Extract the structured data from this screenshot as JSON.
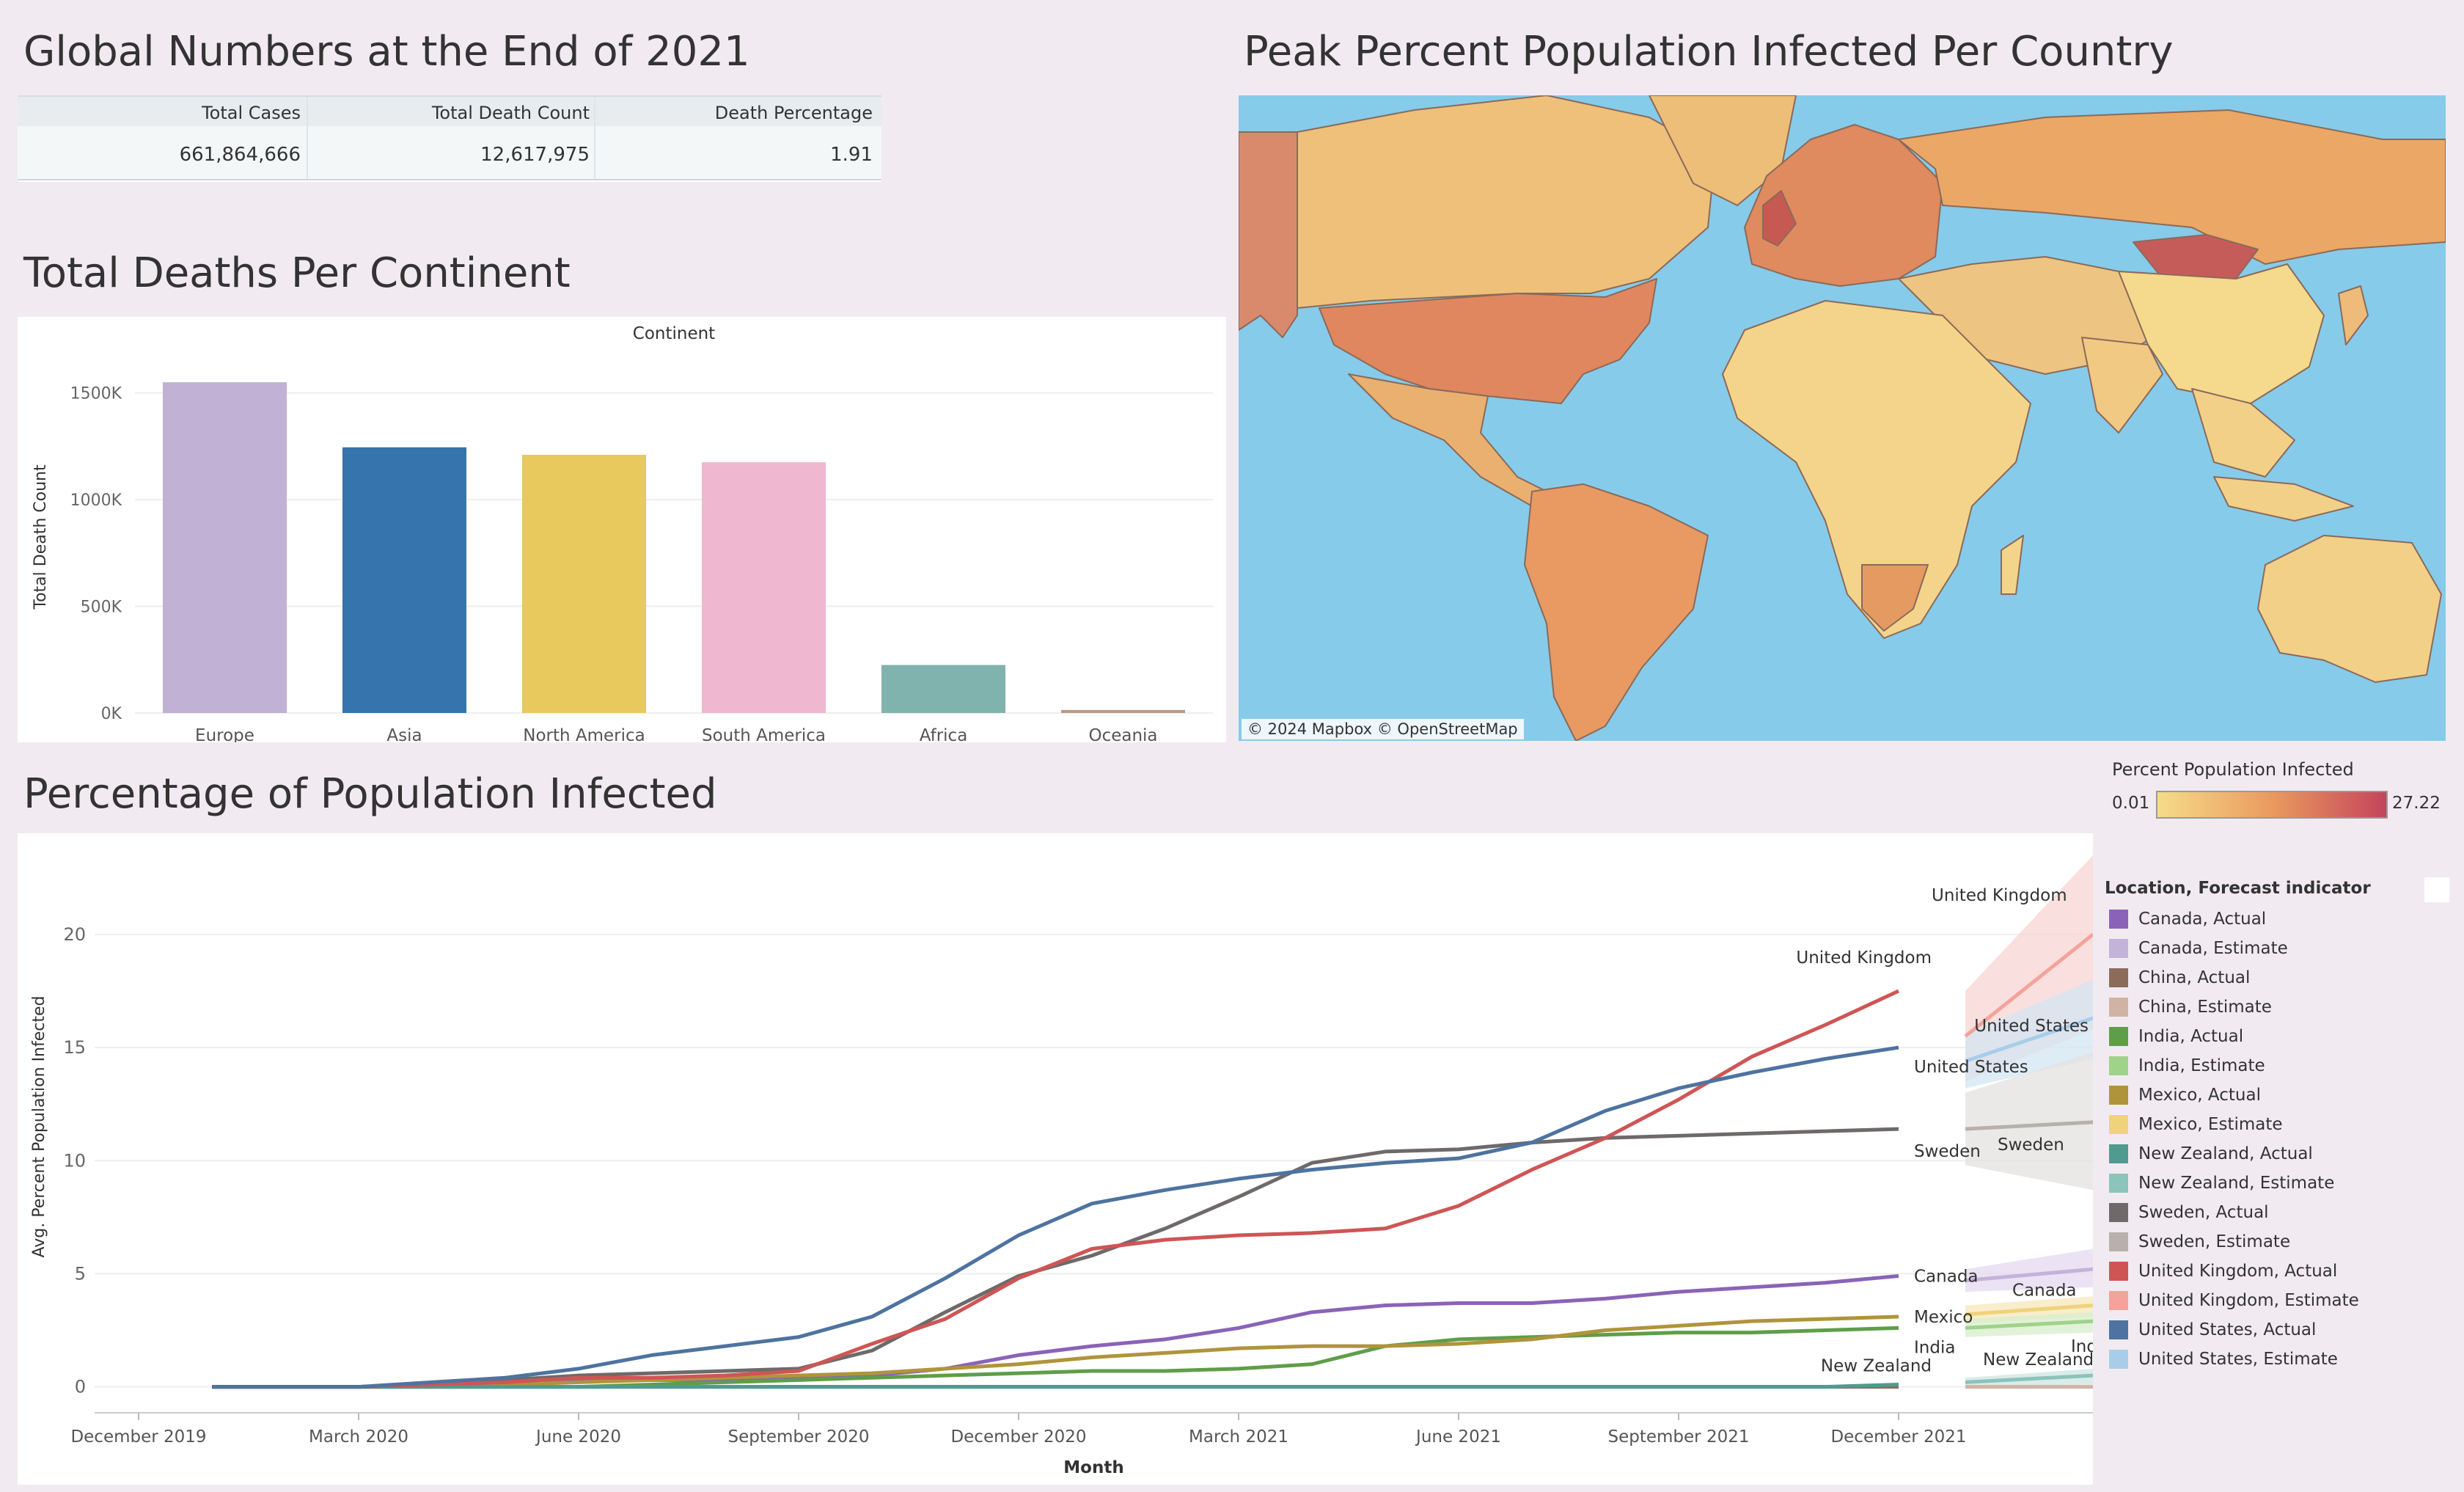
{
  "global": {
    "title": "Global Numbers at the End of 2021",
    "headers": [
      "Total Cases",
      "Total Death Count",
      "Death Percentage"
    ],
    "values": [
      "661,864,666",
      "12,617,975",
      "1.91"
    ]
  },
  "map": {
    "title": "Peak Percent Population Infected Per Country",
    "credit": "© 2024 Mapbox  © OpenStreetMap",
    "legend_title": "Percent Population Infected",
    "min_label": "0.01",
    "max_label": "27.22",
    "colors": {
      "low": "#f5dc8a",
      "mid": "#ea9a5f",
      "high": "#c4445c",
      "ocean": "#86cbea"
    }
  },
  "deaths": {
    "title": "Total Deaths Per Continent"
  },
  "infected": {
    "title": "Percentage of Population Infected",
    "legend_title": "Location, Forecast indicator",
    "legend": [
      {
        "label": "Canada, Actual",
        "color": "#8a63b8"
      },
      {
        "label": "Canada, Estimate",
        "color": "#c3b3d9"
      },
      {
        "label": "China, Actual",
        "color": "#8b6c5b"
      },
      {
        "label": "China, Estimate",
        "color": "#d1b3a3"
      },
      {
        "label": "India, Actual",
        "color": "#5e9e48"
      },
      {
        "label": "India, Estimate",
        "color": "#9fd38a"
      },
      {
        "label": "Mexico, Actual",
        "color": "#b0943b"
      },
      {
        "label": "Mexico, Estimate",
        "color": "#f0d27a"
      },
      {
        "label": "New Zealand, Actual",
        "color": "#4f9b90"
      },
      {
        "label": "New Zealand, Estimate",
        "color": "#8cc3bb"
      },
      {
        "label": "Sweden, Actual",
        "color": "#6e6a6a"
      },
      {
        "label": "Sweden, Estimate",
        "color": "#b7b1ab"
      },
      {
        "label": "United Kingdom, Actual",
        "color": "#cf5555"
      },
      {
        "label": "United Kingdom, Estimate",
        "color": "#f4a29b"
      },
      {
        "label": "United States, Actual",
        "color": "#4e73a0"
      },
      {
        "label": "United States, Estimate",
        "color": "#a8cde9"
      }
    ]
  },
  "chart_data": [
    {
      "type": "bar",
      "title": "Continent",
      "ylabel": "Total Death Count",
      "categories": [
        "Europe",
        "Asia",
        "North America",
        "South America",
        "Africa",
        "Oceania"
      ],
      "values": [
        1550000,
        1245000,
        1210000,
        1175000,
        225000,
        14000
      ],
      "colors": [
        "#c0b1d5",
        "#3574ad",
        "#e7c95d",
        "#efb7d0",
        "#81b3ae",
        "#b59b86"
      ],
      "yticks": [
        0,
        500000,
        1000000,
        1500000
      ],
      "ytick_labels": [
        "0K",
        "500K",
        "1000K",
        "1500K"
      ],
      "ylim": [
        0,
        1650000
      ]
    },
    {
      "type": "line",
      "xlabel": "Month",
      "ylabel": "Avg. Percent Population Infected",
      "x": [
        "2020-01",
        "2020-02",
        "2020-03",
        "2020-04",
        "2020-05",
        "2020-06",
        "2020-07",
        "2020-08",
        "2020-09",
        "2020-10",
        "2020-11",
        "2020-12",
        "2021-01",
        "2021-02",
        "2021-03",
        "2021-04",
        "2021-05",
        "2021-06",
        "2021-07",
        "2021-08",
        "2021-09",
        "2021-10",
        "2021-11",
        "2021-12"
      ],
      "xtick_labels": [
        "December 2019",
        "March 2020",
        "June 2020",
        "September 2020",
        "December 2020",
        "March 2021",
        "June 2021",
        "September 2021",
        "December 2021"
      ],
      "yticks": [
        0,
        5,
        10,
        15,
        20
      ],
      "ylim": [
        -0.5,
        23.5
      ],
      "series": [
        {
          "name": "Canada",
          "forecast": "Actual",
          "color": "#8a63b8",
          "values": [
            0,
            0,
            0,
            0.1,
            0.2,
            0.3,
            0.3,
            0.3,
            0.4,
            0.5,
            0.8,
            1.4,
            1.8,
            2.1,
            2.6,
            3.3,
            3.6,
            3.7,
            3.7,
            3.9,
            4.2,
            4.4,
            4.6,
            4.9
          ]
        },
        {
          "name": "China",
          "forecast": "Actual",
          "color": "#8b6c5b",
          "values": [
            0,
            0,
            0,
            0,
            0,
            0,
            0,
            0,
            0,
            0,
            0,
            0,
            0,
            0,
            0,
            0,
            0,
            0,
            0,
            0,
            0,
            0,
            0,
            0
          ]
        },
        {
          "name": "India",
          "forecast": "Actual",
          "color": "#5e9e48",
          "values": [
            0,
            0,
            0,
            0,
            0,
            0,
            0.1,
            0.2,
            0.3,
            0.4,
            0.5,
            0.6,
            0.7,
            0.7,
            0.8,
            1.0,
            1.8,
            2.1,
            2.2,
            2.3,
            2.4,
            2.4,
            2.5,
            2.6
          ]
        },
        {
          "name": "Mexico",
          "forecast": "Actual",
          "color": "#b0943b",
          "values": [
            0,
            0,
            0,
            0,
            0.1,
            0.2,
            0.3,
            0.4,
            0.5,
            0.6,
            0.8,
            1.0,
            1.3,
            1.5,
            1.7,
            1.8,
            1.8,
            1.9,
            2.1,
            2.5,
            2.7,
            2.9,
            3.0,
            3.1
          ]
        },
        {
          "name": "New Zealand",
          "forecast": "Actual",
          "color": "#4f9b90",
          "values": [
            0,
            0,
            0,
            0,
            0,
            0,
            0,
            0,
            0,
            0,
            0,
            0,
            0,
            0,
            0,
            0,
            0,
            0,
            0,
            0,
            0,
            0,
            0,
            0.1
          ]
        },
        {
          "name": "Sweden",
          "forecast": "Actual",
          "color": "#6e6a6a",
          "values": [
            0,
            0,
            0,
            0.1,
            0.3,
            0.5,
            0.6,
            0.7,
            0.8,
            1.6,
            3.3,
            4.9,
            5.8,
            7.0,
            8.4,
            9.9,
            10.4,
            10.5,
            10.8,
            11.0,
            11.1,
            11.2,
            11.3,
            11.4
          ]
        },
        {
          "name": "United Kingdom",
          "forecast": "Actual",
          "color": "#cf5555",
          "values": [
            0,
            0,
            0,
            0.1,
            0.2,
            0.4,
            0.4,
            0.5,
            0.7,
            1.9,
            3.0,
            4.8,
            6.1,
            6.5,
            6.7,
            6.8,
            7.0,
            8.0,
            9.6,
            11.0,
            12.7,
            14.6,
            16.0,
            17.5
          ]
        },
        {
          "name": "United States",
          "forecast": "Actual",
          "color": "#4e73a0",
          "values": [
            0,
            0,
            0,
            0.2,
            0.4,
            0.8,
            1.4,
            1.8,
            2.2,
            3.1,
            4.8,
            6.7,
            8.1,
            8.7,
            9.2,
            9.6,
            9.9,
            10.1,
            10.8,
            12.2,
            13.2,
            13.9,
            14.5,
            15.0
          ]
        }
      ],
      "forecasts": [
        {
          "name": "United Kingdom",
          "color": "#f4a29b",
          "band": "#f7d4d1",
          "start": 15.5,
          "end": 20.0,
          "low_start": 13.5,
          "low_end": 15.8,
          "high_start": 17.5,
          "high_end": 23.5
        },
        {
          "name": "United States",
          "color": "#a8cde9",
          "band": "#d3e6f3",
          "start": 14.4,
          "end": 16.3,
          "low_start": 13.2,
          "low_end": 14.5,
          "high_start": 15.6,
          "high_end": 18.0
        },
        {
          "name": "Sweden",
          "color": "#b7b1ab",
          "band": "#e4e2e0",
          "start": 11.4,
          "end": 11.7,
          "low_start": 9.8,
          "low_end": 8.7,
          "high_start": 13.0,
          "high_end": 14.8
        },
        {
          "name": "Canada",
          "color": "#c3b3d9",
          "band": "#e4daf0",
          "start": 4.7,
          "end": 5.2,
          "low_start": 4.2,
          "low_end": 4.4,
          "high_start": 5.2,
          "high_end": 6.1
        },
        {
          "name": "Mexico",
          "color": "#f0d27a",
          "band": "#f7e7bb",
          "start": 3.2,
          "end": 3.6,
          "low_start": 2.8,
          "low_end": 3.1,
          "high_start": 3.6,
          "high_end": 4.0
        },
        {
          "name": "India",
          "color": "#9fd38a",
          "band": "#d7edcc",
          "start": 2.6,
          "end": 2.9,
          "low_start": 2.2,
          "low_end": 2.4,
          "high_start": 3.0,
          "high_end": 3.3
        },
        {
          "name": "New Zealand",
          "color": "#8cc3bb",
          "band": "#cde6e3",
          "start": 0.2,
          "end": 0.5,
          "low_start": 0.0,
          "low_end": 0.1,
          "high_start": 0.4,
          "high_end": 0.8
        },
        {
          "name": "China",
          "color": "#d1b3a3",
          "band": "#efe3dc",
          "start": 0.0,
          "end": 0.0,
          "low_start": 0.0,
          "low_end": 0.0,
          "high_start": 0.0,
          "high_end": 0.1
        }
      ],
      "end_labels": [
        "United Kingdom",
        "United States",
        "Sweden",
        "Canada",
        "Mexico",
        "India",
        "New Zealand"
      ],
      "forecast_labels": [
        "United Kingdom",
        "United States",
        "Sweden",
        "Canada",
        "India",
        "New Zealand"
      ]
    }
  ]
}
